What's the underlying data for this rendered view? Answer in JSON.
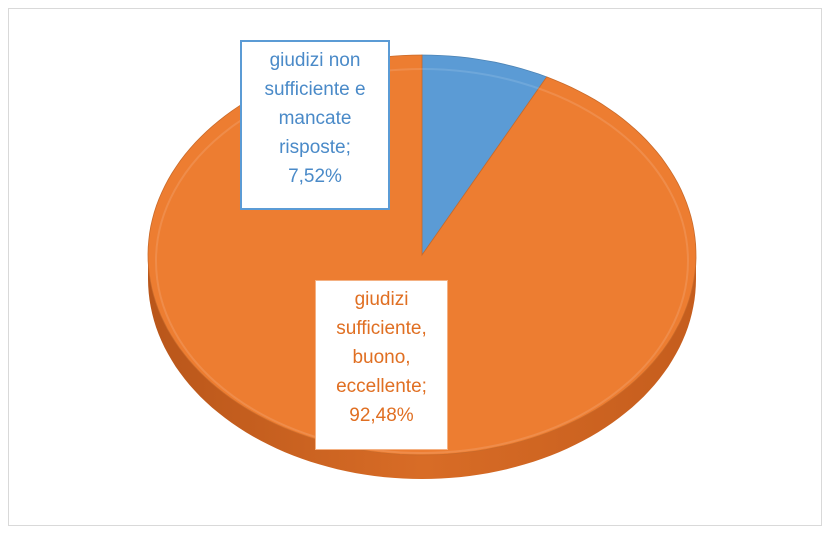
{
  "chart_data": {
    "type": "pie3d",
    "categories": [
      "giudizi non sufficiente e mancate risposte",
      "giudizi sufficiente, buono, eccellente"
    ],
    "values": [
      7.52,
      92.48
    ],
    "value_labels": [
      "7,52%",
      "92,48%"
    ],
    "data_label_separator": ";",
    "colors": [
      "#5b9bd5",
      "#ed7d31"
    ]
  }
}
